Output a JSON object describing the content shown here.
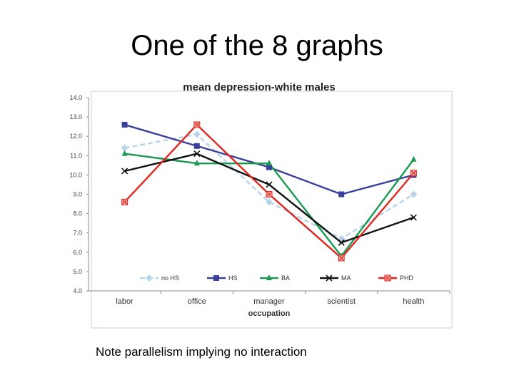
{
  "slide": {
    "title": "One of the 8 graphs",
    "note": "Note parallelism implying no interaction"
  },
  "chart_data": {
    "type": "line",
    "title": "mean depression-white males",
    "xlabel": "occupation",
    "ylabel": "",
    "categories": [
      "labor",
      "office",
      "manager",
      "scientist",
      "health"
    ],
    "ylim": [
      4.0,
      14.0
    ],
    "yticks": [
      "4.0",
      "5.0",
      "6.0",
      "7.0",
      "8.0",
      "9.0",
      "10.0",
      "11.0",
      "12.0",
      "13.0",
      "14.0"
    ],
    "grid": false,
    "legend": "bottom-inside",
    "series": [
      {
        "name": "no HS",
        "color": "#b8d4e8",
        "dash": true,
        "marker": "diamond",
        "values": [
          11.4,
          12.1,
          8.6,
          6.7,
          9.0
        ]
      },
      {
        "name": "HS",
        "color": "#3b3f9c",
        "dash": false,
        "marker": "square",
        "values": [
          12.6,
          11.5,
          10.4,
          9.0,
          10.0
        ]
      },
      {
        "name": "BA",
        "color": "#1a9a50",
        "dash": false,
        "marker": "triangle",
        "values": [
          11.1,
          10.6,
          10.6,
          5.8,
          10.8
        ]
      },
      {
        "name": "MA",
        "color": "#111111",
        "dash": false,
        "marker": "x",
        "values": [
          10.2,
          11.1,
          9.5,
          6.5,
          7.8
        ]
      },
      {
        "name": "PHD",
        "color": "#e0261e",
        "dash": false,
        "marker": "xsquare",
        "values": [
          8.6,
          12.6,
          9.0,
          5.7,
          10.1
        ]
      }
    ]
  }
}
